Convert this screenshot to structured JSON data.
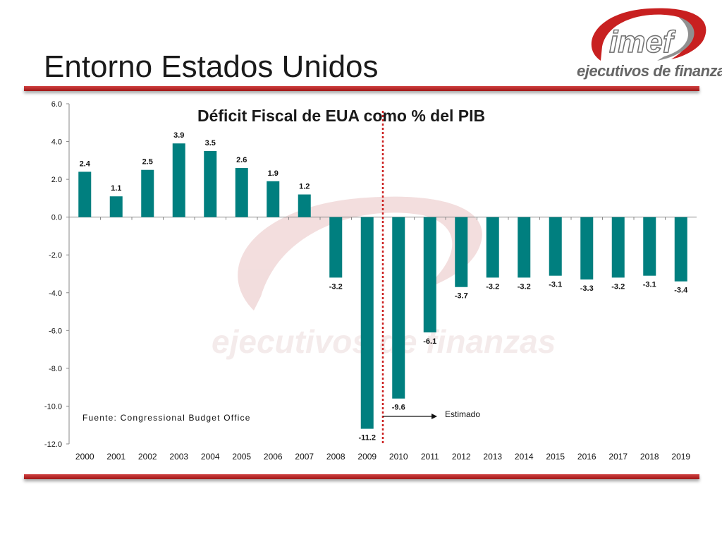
{
  "slide": {
    "title": "Entorno Estados Unidos",
    "logo_text": "imef",
    "logo_tagline": "ejecutivos de finanzas"
  },
  "colors": {
    "bar": "#007f7f",
    "accent_red": "#b82020",
    "watermark": "#efdede"
  },
  "chart_data": {
    "type": "bar",
    "title": "Déficit Fiscal de EUA como % del PIB",
    "categories": [
      "2000",
      "2001",
      "2002",
      "2003",
      "2004",
      "2005",
      "2006",
      "2007",
      "2008",
      "2009",
      "2010",
      "2011",
      "2012",
      "2013",
      "2014",
      "2015",
      "2016",
      "2017",
      "2018",
      "2019"
    ],
    "values": [
      2.4,
      1.1,
      2.5,
      3.9,
      3.5,
      2.6,
      1.9,
      1.2,
      -3.2,
      -11.2,
      -9.6,
      -6.1,
      -3.7,
      -3.2,
      -3.2,
      -3.1,
      -3.3,
      -3.2,
      -3.1,
      -3.4
    ],
    "value_labels": [
      "2.4",
      "1.1",
      "2.5",
      "3.9",
      "3.5",
      "2.6",
      "1.9",
      "1.2",
      "-3.2",
      "-11.2",
      "-9.6",
      "-6.1",
      "-3.7",
      "-3.2",
      "-3.2",
      "-3.1",
      "-3.3",
      "-3.2",
      "-3.1",
      "-3.4"
    ],
    "y_ticks": [
      "6.0",
      "4.0",
      "2.0",
      "0.0",
      "-2.0",
      "-4.0",
      "-6.0",
      "-8.0",
      "-10.0",
      "-12.0"
    ],
    "ylim": [
      -12,
      6
    ],
    "xlabel": "",
    "ylabel": "",
    "grid": false,
    "legend": "none",
    "divider_after": "2009",
    "estimate_label": "Estimado",
    "source": "Fuente: Congressional Budget Office"
  }
}
